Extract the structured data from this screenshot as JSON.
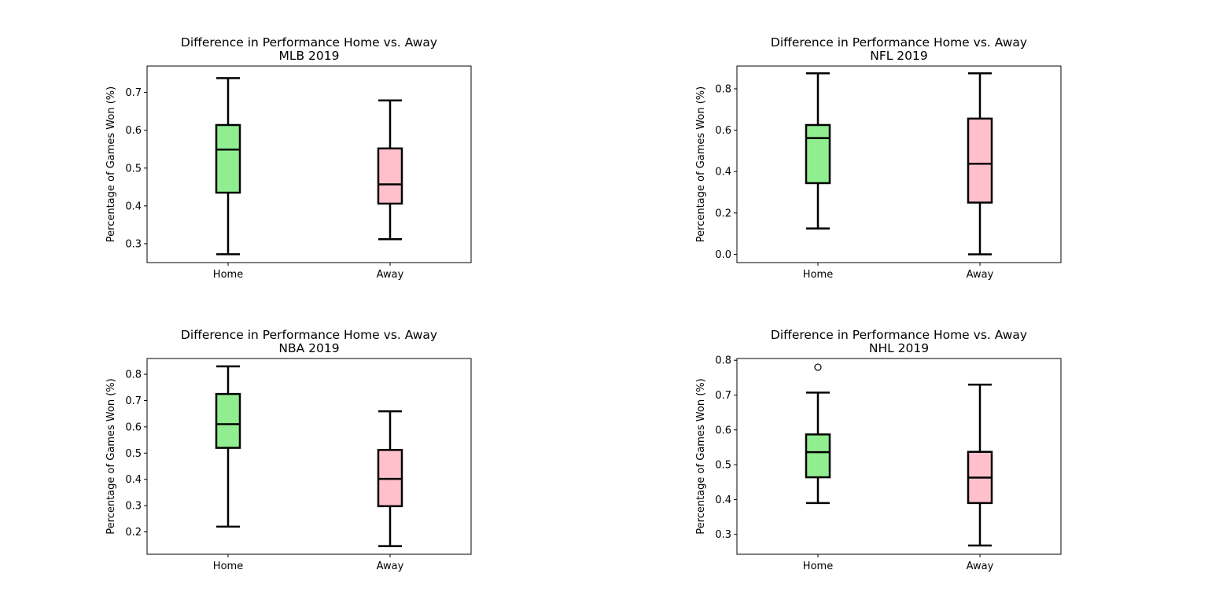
{
  "colors": {
    "home": "#90ee90",
    "away": "#ffc0cb",
    "stroke": "#000000"
  },
  "chart_data": [
    {
      "type": "box",
      "title": "Difference in Performance Home vs. Away\nMLB 2019",
      "ylabel": "Percentage of Games Won (%)",
      "categories": [
        "Home",
        "Away"
      ],
      "ylim": [
        0.25,
        0.77
      ],
      "yticks": [
        0.3,
        0.4,
        0.5,
        0.6,
        0.7
      ],
      "tick_decimals": 1,
      "boxes": [
        {
          "whislo": 0.272,
          "q1": 0.435,
          "med": 0.549,
          "q3": 0.614,
          "whishi": 0.738,
          "fliers": []
        },
        {
          "whislo": 0.312,
          "q1": 0.406,
          "med": 0.457,
          "q3": 0.552,
          "whishi": 0.679,
          "fliers": []
        }
      ]
    },
    {
      "type": "box",
      "title": "Difference in Performance Home vs. Away\nNFL 2019",
      "ylabel": "Percentage of Games Won (%)",
      "categories": [
        "Home",
        "Away"
      ],
      "ylim": [
        -0.04,
        0.91
      ],
      "yticks": [
        0.0,
        0.2,
        0.4,
        0.6,
        0.8
      ],
      "tick_decimals": 1,
      "boxes": [
        {
          "whislo": 0.125,
          "q1": 0.344,
          "med": 0.562,
          "q3": 0.625,
          "whishi": 0.875,
          "fliers": []
        },
        {
          "whislo": 0.0,
          "q1": 0.25,
          "med": 0.438,
          "q3": 0.656,
          "whishi": 0.875,
          "fliers": []
        }
      ]
    },
    {
      "type": "box",
      "title": "Difference in Performance Home vs. Away\nNBA 2019",
      "ylabel": "Percentage of Games Won (%)",
      "categories": [
        "Home",
        "Away"
      ],
      "ylim": [
        0.115,
        0.86
      ],
      "yticks": [
        0.2,
        0.3,
        0.4,
        0.5,
        0.6,
        0.7,
        0.8
      ],
      "tick_decimals": 1,
      "boxes": [
        {
          "whislo": 0.22,
          "q1": 0.52,
          "med": 0.61,
          "q3": 0.725,
          "whishi": 0.83,
          "fliers": []
        },
        {
          "whislo": 0.146,
          "q1": 0.298,
          "med": 0.402,
          "q3": 0.512,
          "whishi": 0.659,
          "fliers": []
        }
      ]
    },
    {
      "type": "box",
      "title": "Difference in Performance Home vs. Away\nNHL 2019",
      "ylabel": "Percentage of Games Won (%)",
      "categories": [
        "Home",
        "Away"
      ],
      "ylim": [
        0.243,
        0.805
      ],
      "yticks": [
        0.3,
        0.4,
        0.5,
        0.6,
        0.7,
        0.8
      ],
      "tick_decimals": 1,
      "boxes": [
        {
          "whislo": 0.39,
          "q1": 0.464,
          "med": 0.536,
          "q3": 0.587,
          "whishi": 0.707,
          "fliers": [
            0.78
          ]
        },
        {
          "whislo": 0.268,
          "q1": 0.39,
          "med": 0.463,
          "q3": 0.537,
          "whishi": 0.73,
          "fliers": []
        }
      ]
    }
  ]
}
